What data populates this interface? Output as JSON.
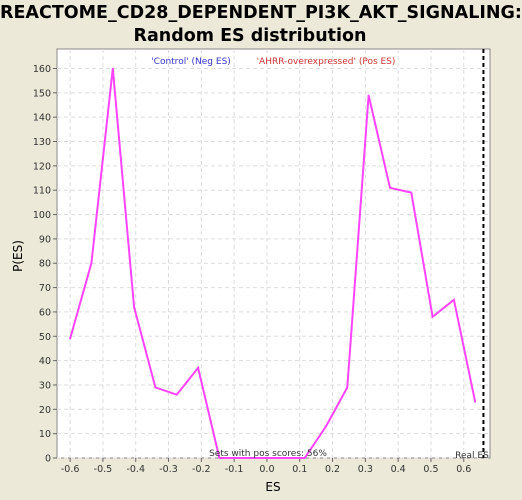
{
  "chart_data": {
    "type": "line",
    "title_line1": "REACTOME_CD28_DEPENDENT_PI3K_AKT_SIGNALING:",
    "title_line2": "Random ES distribution",
    "xlabel": "ES",
    "ylabel": "P(ES)",
    "xlim": [
      -0.64,
      0.68
    ],
    "ylim": [
      0,
      168
    ],
    "x_ticks": [
      "-0.6",
      "-0.5",
      "-0.4",
      "-0.3",
      "-0.2",
      "-0.1",
      "0.0",
      "0.1",
      "0.2",
      "0.3",
      "0.4",
      "0.5",
      "0.6"
    ],
    "x_tick_values": [
      -0.6,
      -0.5,
      -0.4,
      -0.3,
      -0.2,
      -0.1,
      0.0,
      0.1,
      0.2,
      0.3,
      0.4,
      0.5,
      0.6
    ],
    "y_ticks": [
      0,
      10,
      20,
      30,
      40,
      50,
      60,
      70,
      80,
      90,
      100,
      110,
      120,
      130,
      140,
      150,
      160
    ],
    "grid": true,
    "legend": {
      "neg_label": "'Control' (Neg ES)",
      "pos_label": "'AHRR-overexpressed' (Pos ES)",
      "neg_color": "#3333CC",
      "pos_color": "#CC3333"
    },
    "series": [
      {
        "color": "#FF44FF",
        "x": [
          -0.6,
          -0.535,
          -0.47,
          -0.405,
          -0.34,
          -0.275,
          -0.21,
          -0.145,
          -0.08,
          -0.015,
          0.05,
          0.115,
          0.18,
          0.245,
          0.31,
          0.375,
          0.44,
          0.505,
          0.57,
          0.635
        ],
        "y": [
          49,
          80,
          160,
          62,
          29,
          26,
          37,
          0,
          0,
          0,
          0,
          0,
          13,
          29,
          149,
          111,
          109,
          58,
          65,
          23
        ]
      }
    ],
    "real_es": {
      "x": 0.66,
      "label": "Real ES"
    },
    "annotation": "Sets with pos scores: 56%"
  }
}
